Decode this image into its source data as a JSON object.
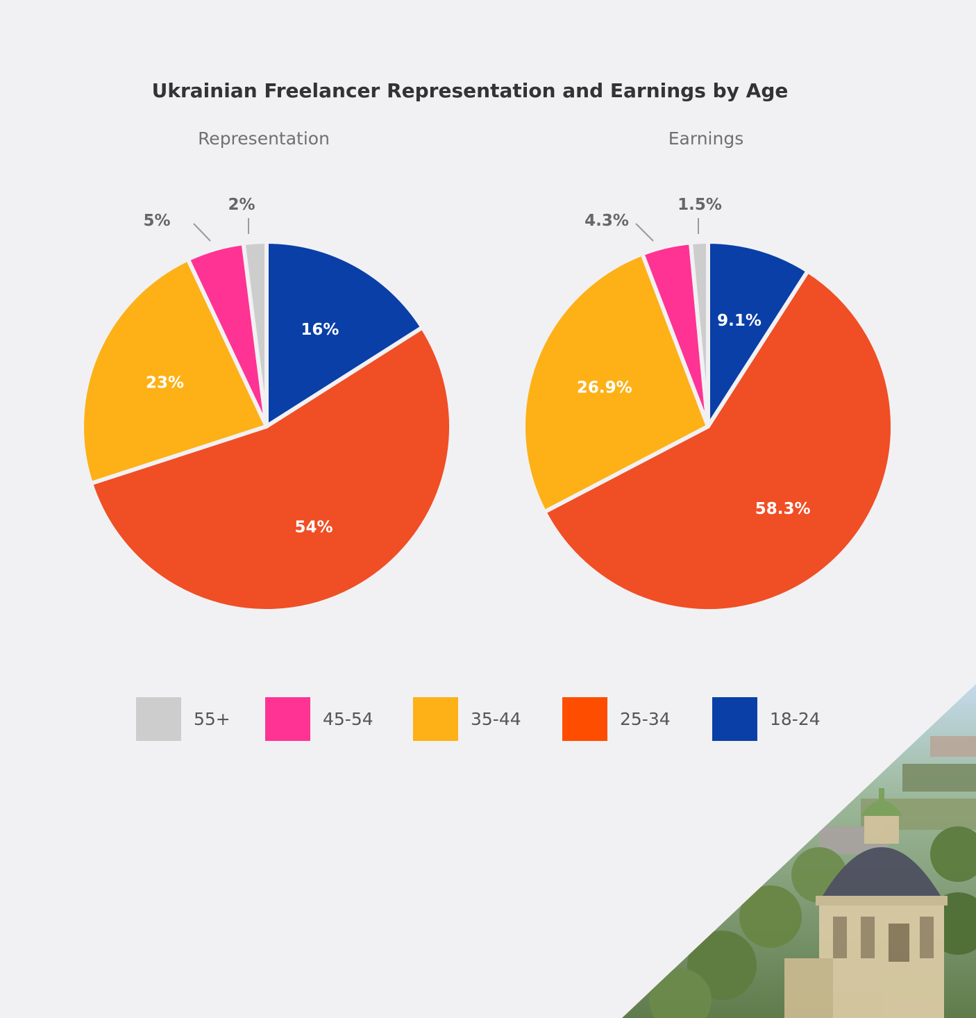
{
  "chart_data": {
    "type": "pie",
    "title": "Ukrainian Freelancer Representation and Earnings by Age",
    "categories": [
      "18-24",
      "25-34",
      "35-44",
      "45-54",
      "55+"
    ],
    "charts": [
      {
        "subtitle": "Representation",
        "values": [
          16,
          54,
          23,
          5,
          2
        ],
        "labels": [
          "16%",
          "54%",
          "23%",
          "5%",
          "2%"
        ]
      },
      {
        "subtitle": "Earnings",
        "values": [
          9.1,
          58.3,
          26.9,
          4.3,
          1.5
        ],
        "labels": [
          "9.1%",
          "58.3%",
          "26.9%",
          "4.3%",
          "1.5%"
        ]
      }
    ],
    "legend": {
      "position": "bottom",
      "order": [
        "55+",
        "45-54",
        "35-44",
        "25-34",
        "18-24"
      ]
    },
    "colors": {
      "18-24": "#0a3fa8",
      "25-34": "#f04e25",
      "35-44": "#fdb117",
      "45-54": "#ff3393",
      "55+": "#cdcdcd"
    },
    "legend_colors": {
      "18-24": "#0a3fa8",
      "25-34": "#ff4d00",
      "35-44": "#fdb117",
      "45-54": "#ff3393",
      "55+": "#cdcdcd"
    }
  },
  "decoration": {
    "photo_corner": "city-photo-corner"
  }
}
